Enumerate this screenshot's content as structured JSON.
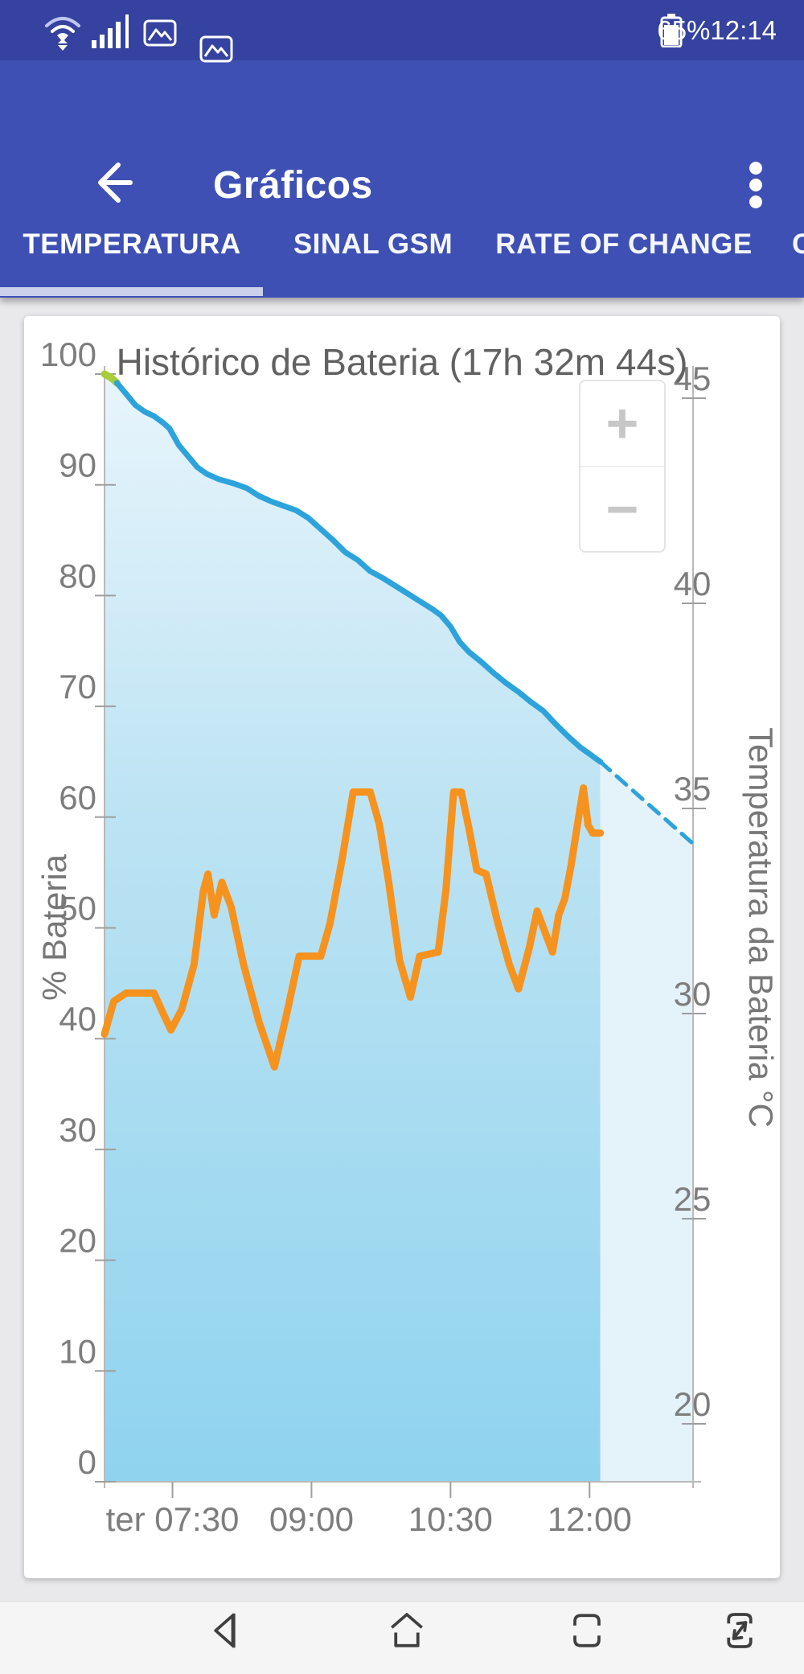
{
  "status_bar": {
    "battery_percent": "65%",
    "time": "12:14",
    "icons": [
      "wifi-icon",
      "signal-strength-icon",
      "image-notification-icon",
      "image-notification-icon",
      "battery-icon"
    ]
  },
  "app_bar": {
    "title": "Gráficos",
    "back_icon": "arrow-left",
    "menu_icon": "more-vertical"
  },
  "tabs": {
    "items": [
      {
        "label": "TEMPERATURA",
        "selected": true
      },
      {
        "label": "SINAL GSM",
        "selected": false
      },
      {
        "label": "RATE OF CHANGE",
        "selected": false
      }
    ],
    "clipped_next_tab_text": "C"
  },
  "chart": {
    "title": "Histórico de Bateria (17h 32m 44s)",
    "zoom_in_label": "+",
    "zoom_out_label": "−"
  },
  "chart_data": {
    "type": "line",
    "title": "Histórico de Bateria (17h 32m 44s)",
    "x_domain": [
      "06:46",
      "13:07"
    ],
    "x_ticks": [
      {
        "t": "07:30",
        "label": "ter 07:30"
      },
      {
        "t": "09:00",
        "label": "09:00"
      },
      {
        "t": "10:30",
        "label": "10:30"
      },
      {
        "t": "12:00",
        "label": "12:00"
      }
    ],
    "left_axis": {
      "title": "% Bateria",
      "min": 0,
      "max": 100,
      "ticks": [
        0,
        10,
        20,
        30,
        40,
        50,
        60,
        70,
        80,
        90,
        100
      ]
    },
    "right_axis": {
      "title": "Temperatura da Bateria °C",
      "min": 20,
      "max": 45,
      "ticks": [
        20,
        25,
        30,
        35,
        40,
        45
      ]
    },
    "grid": false,
    "legend": "none",
    "series": [
      {
        "name": "battery-full-green",
        "axis": "left",
        "style": "solid",
        "color": "#A6CE39",
        "points": [
          [
            "06:46",
            100
          ],
          [
            "06:50",
            99.7
          ],
          [
            "06:54",
            99.2
          ]
        ]
      },
      {
        "name": "battery-percent",
        "axis": "left",
        "style": "solid",
        "color": "#2CA3DB",
        "points": [
          [
            "06:54",
            99.2
          ],
          [
            "07:00",
            98.2
          ],
          [
            "07:06",
            97.2
          ],
          [
            "07:12",
            96.6
          ],
          [
            "07:18",
            96.2
          ],
          [
            "07:24",
            95.6
          ],
          [
            "07:28",
            95.1
          ],
          [
            "07:34",
            93.6
          ],
          [
            "07:40",
            92.6
          ],
          [
            "07:46",
            91.6
          ],
          [
            "07:52",
            91.0
          ],
          [
            "08:00",
            90.5
          ],
          [
            "08:10",
            90.1
          ],
          [
            "08:18",
            89.7
          ],
          [
            "08:26",
            89.0
          ],
          [
            "08:34",
            88.5
          ],
          [
            "08:42",
            88.1
          ],
          [
            "08:50",
            87.7
          ],
          [
            "08:58",
            87.0
          ],
          [
            "09:06",
            86.0
          ],
          [
            "09:14",
            85.0
          ],
          [
            "09:22",
            83.9
          ],
          [
            "09:30",
            83.2
          ],
          [
            "09:38",
            82.2
          ],
          [
            "09:46",
            81.6
          ],
          [
            "09:54",
            80.9
          ],
          [
            "10:02",
            80.2
          ],
          [
            "10:10",
            79.5
          ],
          [
            "10:18",
            78.8
          ],
          [
            "10:24",
            78.2
          ],
          [
            "10:30",
            77.2
          ],
          [
            "10:36",
            75.8
          ],
          [
            "10:42",
            74.9
          ],
          [
            "10:50",
            74.0
          ],
          [
            "10:58",
            73.0
          ],
          [
            "11:06",
            72.1
          ],
          [
            "11:14",
            71.3
          ],
          [
            "11:22",
            70.4
          ],
          [
            "11:30",
            69.6
          ],
          [
            "11:38",
            68.4
          ],
          [
            "11:46",
            67.3
          ],
          [
            "11:54",
            66.3
          ],
          [
            "12:00",
            65.7
          ],
          [
            "12:07",
            65.0
          ]
        ]
      },
      {
        "name": "battery-projection",
        "axis": "left",
        "style": "dashed",
        "color": "#2CA3DB",
        "points": [
          [
            "12:07",
            65.0
          ],
          [
            "13:07",
            57.6
          ]
        ]
      },
      {
        "name": "temperature",
        "axis": "right",
        "style": "solid",
        "color": "#F6921E",
        "points": [
          [
            "06:46",
            29.5
          ],
          [
            "06:52",
            30.3
          ],
          [
            "07:00",
            30.5
          ],
          [
            "07:18",
            30.5
          ],
          [
            "07:24",
            30.0
          ],
          [
            "07:29",
            29.6
          ],
          [
            "07:36",
            30.1
          ],
          [
            "07:44",
            31.2
          ],
          [
            "07:50",
            33.0
          ],
          [
            "07:53",
            33.4
          ],
          [
            "07:57",
            32.4
          ],
          [
            "08:02",
            33.2
          ],
          [
            "08:08",
            32.6
          ],
          [
            "08:16",
            31.2
          ],
          [
            "08:26",
            29.8
          ],
          [
            "08:36",
            28.7
          ],
          [
            "08:44",
            30.0
          ],
          [
            "08:52",
            31.4
          ],
          [
            "09:06",
            31.4
          ],
          [
            "09:12",
            32.2
          ],
          [
            "09:20",
            33.8
          ],
          [
            "09:27",
            35.4
          ],
          [
            "09:38",
            35.4
          ],
          [
            "09:44",
            34.6
          ],
          [
            "09:50",
            33.2
          ],
          [
            "09:57",
            31.3
          ],
          [
            "10:04",
            30.4
          ],
          [
            "10:10",
            31.4
          ],
          [
            "10:22",
            31.5
          ],
          [
            "10:27",
            33.0
          ],
          [
            "10:32",
            35.4
          ],
          [
            "10:37",
            35.4
          ],
          [
            "10:42",
            34.5
          ],
          [
            "10:47",
            33.5
          ],
          [
            "10:53",
            33.4
          ],
          [
            "11:00",
            32.3
          ],
          [
            "11:08",
            31.2
          ],
          [
            "11:14",
            30.6
          ],
          [
            "11:21",
            31.6
          ],
          [
            "11:26",
            32.5
          ],
          [
            "11:31",
            32.0
          ],
          [
            "11:36",
            31.5
          ],
          [
            "11:40",
            32.4
          ],
          [
            "11:44",
            32.8
          ],
          [
            "11:48",
            33.6
          ],
          [
            "11:53",
            34.8
          ],
          [
            "11:56",
            35.5
          ],
          [
            "11:59",
            34.6
          ],
          [
            "12:02",
            34.4
          ],
          [
            "12:07",
            34.4
          ]
        ]
      }
    ],
    "fills": [
      {
        "name": "battery-area",
        "under": [
          "battery-full-green",
          "battery-percent"
        ],
        "gradient": [
          "#E8F5FC",
          "#BCE3F3",
          "#8FD3EF"
        ]
      },
      {
        "name": "projection-area",
        "under": [
          "battery-projection"
        ],
        "color": "#E4F2FA"
      }
    ]
  },
  "nav_bar": {
    "icons": [
      "nav-back-icon",
      "nav-home-icon",
      "nav-recents-icon",
      "nav-resize-icon"
    ]
  },
  "colors": {
    "status_bar_bg": "#35429F",
    "app_bar_bg": "#3E50B4",
    "tab_indicator": "#CBD0EB",
    "card_bg": "#FFFFFF",
    "page_bg": "#E9E9EB",
    "axis_line": "#B9B9B9",
    "axis_text": "#7D7D7D",
    "title_text": "#616161",
    "battery_line": "#2CA3DB",
    "battery_full_line": "#A6CE39",
    "temperature_line": "#F6921E"
  }
}
